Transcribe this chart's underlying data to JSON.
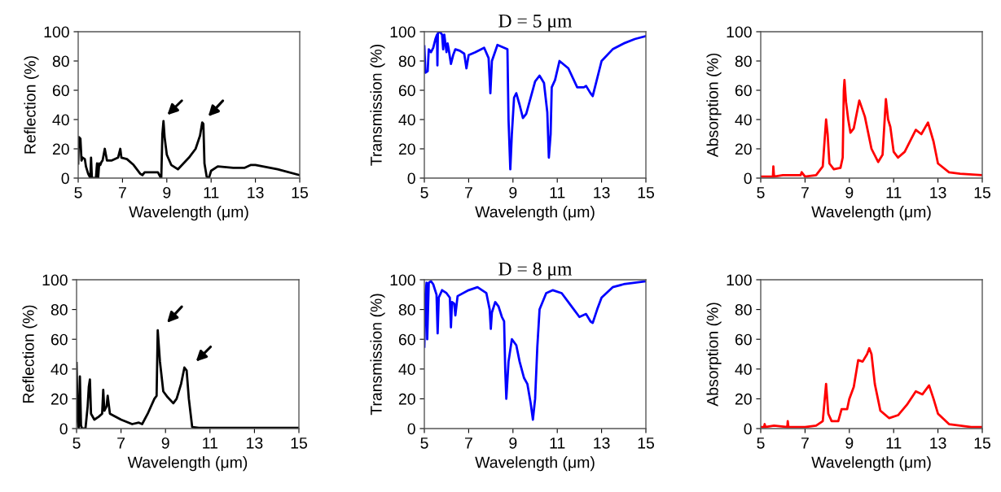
{
  "chart_data": [
    {
      "type": "line",
      "xlabel": "Wavelength (μm)",
      "ylabel": "Reflection (%)",
      "xlim": [
        5,
        15
      ],
      "ylim": [
        0,
        100
      ],
      "xticks": [
        5,
        7,
        9,
        11,
        13,
        15
      ],
      "yticks": [
        0,
        20,
        40,
        60,
        80,
        100
      ],
      "series": [
        {
          "color": "#000000",
          "x": [
            5.0,
            5.03,
            5.1,
            5.15,
            5.2,
            5.3,
            5.35,
            5.45,
            5.55,
            5.58,
            5.62,
            5.8,
            5.85,
            5.9,
            5.95,
            6.0,
            6.05,
            6.1,
            6.2,
            6.3,
            6.5,
            6.8,
            6.9,
            6.95,
            7.2,
            7.5,
            7.8,
            7.9,
            8.0,
            8.3,
            8.6,
            8.7,
            8.75,
            8.8,
            8.85,
            8.9,
            9.0,
            9.2,
            9.5,
            10.0,
            10.3,
            10.5,
            10.6,
            10.65,
            10.7,
            10.8,
            10.9,
            11.0,
            11.3,
            12.0,
            12.5,
            12.8,
            13.0,
            14.0,
            15.0
          ],
          "values": [
            10,
            28,
            27,
            12,
            14,
            13,
            8,
            3,
            0,
            14,
            0,
            0,
            10,
            0,
            10,
            9,
            11,
            12,
            20,
            12,
            12,
            14,
            20,
            14,
            13,
            9,
            3,
            2,
            4,
            4,
            4,
            1,
            0,
            30,
            39,
            28,
            16,
            9,
            6,
            14,
            20,
            29,
            38,
            37,
            10,
            1,
            0,
            5,
            8,
            7,
            7,
            9,
            9,
            6,
            2
          ]
        }
      ]
    },
    {
      "type": "line",
      "title": "D = 5 μm",
      "xlabel": "Wavelength (μm)",
      "ylabel": "Transmission (%)",
      "xlim": [
        5,
        15
      ],
      "ylim": [
        0,
        100
      ],
      "xticks": [
        5,
        7,
        9,
        11,
        13,
        15
      ],
      "yticks": [
        0,
        20,
        40,
        60,
        80,
        100
      ],
      "series": [
        {
          "color": "#0000ff",
          "x": [
            5.0,
            5.05,
            5.15,
            5.2,
            5.3,
            5.4,
            5.5,
            5.57,
            5.59,
            5.61,
            5.7,
            5.8,
            5.85,
            5.9,
            6.0,
            6.05,
            6.1,
            6.2,
            6.3,
            6.4,
            6.6,
            6.8,
            6.9,
            7.0,
            7.3,
            7.7,
            7.9,
            7.98,
            8.05,
            8.3,
            8.6,
            8.75,
            8.8,
            8.88,
            8.95,
            9.05,
            9.15,
            9.3,
            9.45,
            9.6,
            10.0,
            10.2,
            10.4,
            10.55,
            10.62,
            10.7,
            10.75,
            10.9,
            11.1,
            11.5,
            11.9,
            12.2,
            12.3,
            12.5,
            12.6,
            12.8,
            13.0,
            13.5,
            14.0,
            14.5,
            15.0
          ],
          "values": [
            90,
            72,
            73,
            88,
            86,
            89,
            95,
            98,
            77,
            99,
            100,
            98,
            88,
            98,
            86,
            92,
            88,
            78,
            84,
            88,
            87,
            85,
            75,
            84,
            86,
            89,
            82,
            58,
            80,
            91,
            89,
            88,
            40,
            6,
            30,
            55,
            58,
            50,
            41,
            44,
            66,
            70,
            65,
            45,
            14,
            30,
            62,
            67,
            80,
            75,
            62,
            62,
            63,
            58,
            56,
            68,
            80,
            88,
            92,
            95,
            97
          ]
        }
      ]
    },
    {
      "type": "line",
      "xlabel": "Wavelength (μm)",
      "ylabel": "Absorption (%)",
      "xlim": [
        5,
        15
      ],
      "ylim": [
        0,
        100
      ],
      "xticks": [
        5,
        7,
        9,
        11,
        13,
        15
      ],
      "yticks": [
        0,
        20,
        40,
        60,
        80,
        100
      ],
      "series": [
        {
          "color": "#ff0000",
          "x": [
            5.0,
            5.55,
            5.57,
            5.6,
            6.0,
            6.8,
            6.85,
            7.0,
            7.5,
            7.8,
            7.95,
            8.02,
            8.1,
            8.3,
            8.6,
            8.7,
            8.75,
            8.78,
            8.85,
            8.95,
            9.05,
            9.2,
            9.45,
            9.7,
            10.0,
            10.3,
            10.5,
            10.65,
            10.75,
            10.85,
            11.0,
            11.2,
            11.5,
            12.0,
            12.25,
            12.55,
            12.8,
            13.0,
            13.5,
            14.0,
            15.0
          ],
          "values": [
            1,
            1,
            8,
            1,
            2,
            2,
            4,
            1,
            2,
            8,
            40,
            30,
            10,
            6,
            7,
            14,
            60,
            67,
            52,
            40,
            31,
            34,
            53,
            42,
            20,
            11,
            16,
            54,
            40,
            35,
            18,
            14,
            18,
            33,
            30,
            38,
            25,
            10,
            4,
            3,
            2
          ]
        }
      ]
    },
    {
      "type": "line",
      "xlabel": "Wavelength (μm)",
      "ylabel": "Reflection (%)",
      "xlim": [
        5,
        15
      ],
      "ylim": [
        0,
        100
      ],
      "xticks": [
        5,
        7,
        9,
        11,
        13,
        15
      ],
      "yticks": [
        0,
        20,
        40,
        60,
        80,
        100
      ],
      "series": [
        {
          "color": "#000000",
          "x": [
            5.0,
            5.02,
            5.05,
            5.1,
            5.15,
            5.2,
            5.25,
            5.4,
            5.5,
            5.55,
            5.6,
            5.65,
            5.8,
            6.0,
            6.15,
            6.2,
            6.25,
            6.35,
            6.4,
            6.5,
            7.0,
            7.5,
            7.8,
            7.95,
            8.2,
            8.5,
            8.6,
            8.65,
            8.75,
            8.9,
            9.1,
            9.35,
            9.5,
            9.7,
            9.85,
            9.95,
            10.05,
            10.2,
            10.5,
            13.0,
            15.0
          ],
          "values": [
            44,
            30,
            5,
            0,
            35,
            2,
            0,
            0,
            15,
            28,
            33,
            10,
            6,
            8,
            10,
            26,
            12,
            15,
            22,
            10,
            6,
            3,
            4,
            3,
            10,
            20,
            22,
            66,
            45,
            25,
            21,
            17,
            20,
            30,
            41,
            39,
            20,
            1,
            0.5,
            0.5,
            0.5
          ]
        }
      ]
    },
    {
      "type": "line",
      "title": "D = 8 μm",
      "xlabel": "Wavelength (μm)",
      "ylabel": "Transmission (%)",
      "xlim": [
        5,
        15
      ],
      "ylim": [
        0,
        100
      ],
      "xticks": [
        5,
        7,
        9,
        11,
        13,
        15
      ],
      "yticks": [
        0,
        20,
        40,
        60,
        80,
        100
      ],
      "series": [
        {
          "color": "#0000ff",
          "x": [
            5.0,
            5.05,
            5.1,
            5.13,
            5.2,
            5.3,
            5.4,
            5.55,
            5.6,
            5.65,
            5.8,
            6.0,
            6.15,
            6.2,
            6.25,
            6.35,
            6.4,
            6.5,
            7.0,
            7.4,
            7.8,
            7.95,
            8.0,
            8.05,
            8.2,
            8.35,
            8.5,
            8.6,
            8.65,
            8.7,
            8.8,
            8.95,
            9.15,
            9.3,
            9.5,
            9.65,
            9.8,
            9.9,
            10.0,
            10.1,
            10.2,
            10.5,
            10.8,
            11.2,
            11.6,
            12.0,
            12.3,
            12.5,
            12.6,
            12.8,
            13.0,
            13.5,
            14.0,
            15.0
          ],
          "values": [
            55,
            90,
            98,
            60,
            98,
            99,
            97,
            90,
            64,
            88,
            93,
            91,
            88,
            68,
            85,
            84,
            76,
            89,
            93,
            95,
            91,
            80,
            67,
            78,
            85,
            82,
            75,
            72,
            40,
            20,
            45,
            60,
            56,
            45,
            34,
            30,
            17,
            6,
            20,
            55,
            80,
            91,
            93,
            91,
            83,
            75,
            77,
            72,
            71,
            80,
            88,
            95,
            97,
            99
          ]
        }
      ]
    },
    {
      "type": "line",
      "xlabel": "Wavelength (μm)",
      "ylabel": "Absorption (%)",
      "xlim": [
        5,
        15
      ],
      "ylim": [
        0,
        100
      ],
      "xticks": [
        5,
        7,
        9,
        11,
        13,
        15
      ],
      "yticks": [
        0,
        20,
        40,
        60,
        80,
        100
      ],
      "series": [
        {
          "color": "#ff0000",
          "x": [
            5.0,
            5.15,
            5.18,
            5.2,
            5.6,
            6.2,
            6.22,
            6.25,
            7.0,
            7.5,
            7.8,
            7.95,
            8.05,
            8.2,
            8.5,
            8.65,
            8.9,
            9.0,
            9.2,
            9.4,
            9.6,
            9.8,
            9.9,
            10.0,
            10.15,
            10.4,
            10.8,
            11.2,
            11.6,
            12.0,
            12.3,
            12.6,
            12.8,
            13.0,
            13.5,
            14.5,
            15.0
          ],
          "values": [
            1,
            1,
            3,
            1,
            2,
            1,
            5,
            1,
            1,
            2,
            5,
            30,
            10,
            5,
            5,
            13,
            13,
            20,
            28,
            46,
            45,
            50,
            54,
            50,
            30,
            12,
            7,
            9,
            16,
            25,
            23,
            29,
            20,
            10,
            3,
            1,
            1
          ]
        }
      ]
    }
  ]
}
